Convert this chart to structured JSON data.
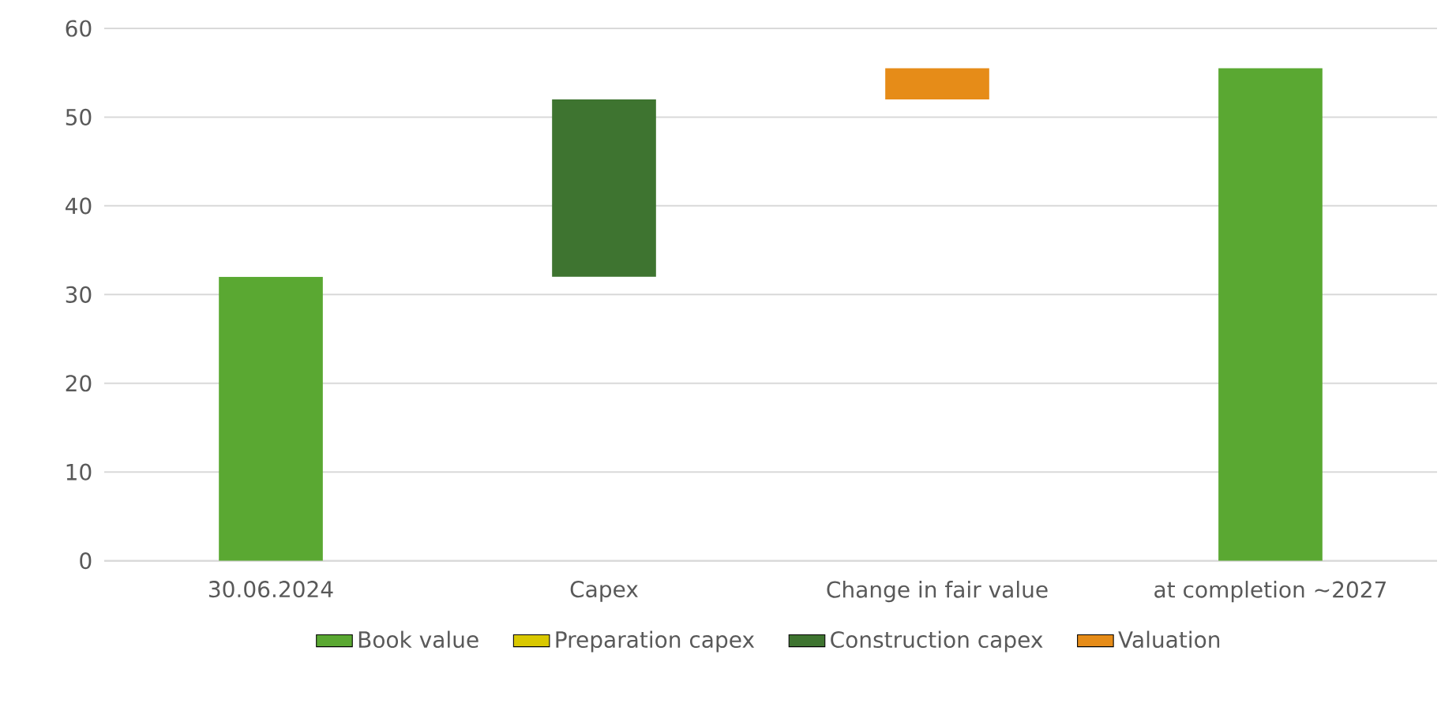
{
  "chart_data": {
    "type": "bar",
    "categories": [
      "30.06.2024",
      "Capex",
      "Change in fair value",
      "at completion ~2027"
    ],
    "series": [
      {
        "name": "Book value",
        "color": "#5aa832",
        "values": [
          32,
          null,
          null,
          55.5
        ],
        "base": [
          0,
          null,
          null,
          0
        ]
      },
      {
        "name": "Preparation capex",
        "color": "#d9c800",
        "values": [
          null,
          null,
          null,
          null
        ]
      },
      {
        "name": "Construction capex",
        "color": "#3e7430",
        "values": [
          null,
          20,
          null,
          null
        ],
        "base": [
          null,
          32,
          null,
          null
        ]
      },
      {
        "name": "Valuation",
        "color": "#e68c18",
        "values": [
          null,
          null,
          3.5,
          null
        ],
        "base": [
          null,
          null,
          52,
          null
        ]
      }
    ],
    "ylim": [
      0,
      60
    ],
    "yticks": [
      0,
      10,
      20,
      30,
      40,
      50,
      60
    ],
    "grid": "y",
    "legend": "bottom"
  }
}
